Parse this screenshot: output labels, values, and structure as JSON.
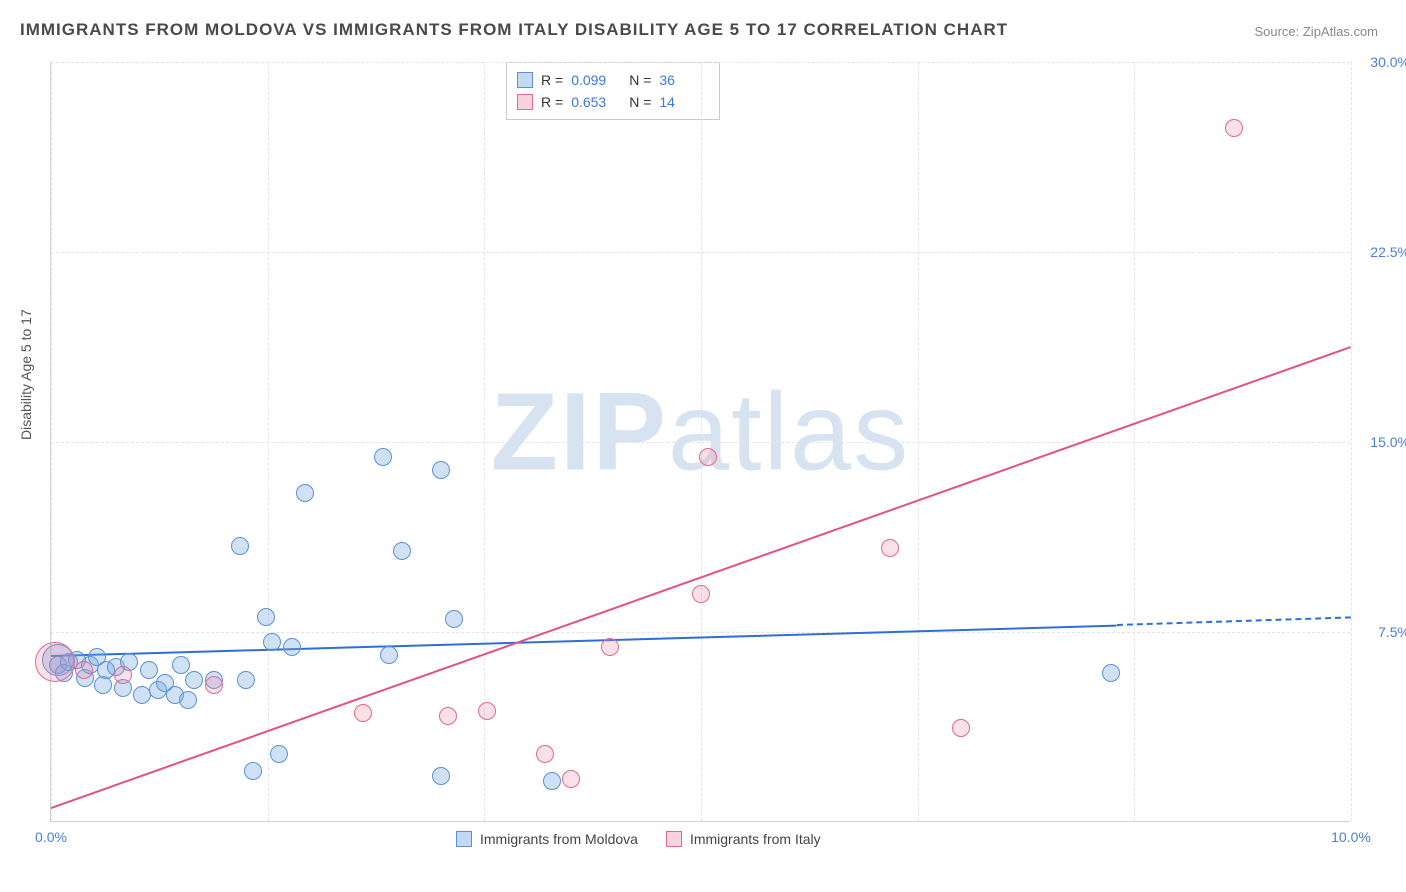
{
  "title": "IMMIGRANTS FROM MOLDOVA VS IMMIGRANTS FROM ITALY DISABILITY AGE 5 TO 17 CORRELATION CHART",
  "source": "Source: ZipAtlas.com",
  "ylabel": "Disability Age 5 to 17",
  "watermark_zip": "ZIP",
  "watermark_atlas": "atlas",
  "chart": {
    "type": "scatter",
    "xlim": [
      0,
      10
    ],
    "ylim": [
      0,
      30
    ],
    "xticks": [
      {
        "v": 0.0,
        "label": "0.0%"
      },
      {
        "v": 10.0,
        "label": "10.0%"
      }
    ],
    "xgrid_at": [
      0,
      1.667,
      3.333,
      5.0,
      6.667,
      8.333,
      10.0
    ],
    "yticks": [
      {
        "v": 7.5,
        "label": "7.5%"
      },
      {
        "v": 15.0,
        "label": "15.0%"
      },
      {
        "v": 22.5,
        "label": "22.5%"
      },
      {
        "v": 30.0,
        "label": "30.0%"
      }
    ],
    "grid_color": "#e4e4e4",
    "background_color": "#ffffff",
    "series": [
      {
        "key": "moldova",
        "label": "Immigrants from Moldova",
        "color_fill": "rgba(120,170,230,0.35)",
        "color_stroke": "#5b92d6",
        "class": "pt-blue",
        "R_label": "R =",
        "R": "0.099",
        "N_label": "N =",
        "N": "36",
        "trend": {
          "x1": 0.0,
          "y1": 6.6,
          "x2": 8.2,
          "y2": 7.8,
          "color": "#2d6fd6",
          "dash_x1": 8.2,
          "dash_y1": 7.8,
          "dash_x2": 10.0,
          "dash_y2": 8.1
        },
        "points": [
          {
            "x": 0.05,
            "y": 6.4,
            "r": 16
          },
          {
            "x": 0.05,
            "y": 6.2,
            "r": 9
          },
          {
            "x": 0.1,
            "y": 5.9,
            "r": 9
          },
          {
            "x": 0.14,
            "y": 6.3,
            "r": 9
          },
          {
            "x": 0.2,
            "y": 6.4,
            "r": 9
          },
          {
            "x": 0.26,
            "y": 5.7,
            "r": 9
          },
          {
            "x": 0.3,
            "y": 6.2,
            "r": 9
          },
          {
            "x": 0.35,
            "y": 6.5,
            "r": 9
          },
          {
            "x": 0.4,
            "y": 5.4,
            "r": 9
          },
          {
            "x": 0.42,
            "y": 6.0,
            "r": 9
          },
          {
            "x": 0.5,
            "y": 6.1,
            "r": 9
          },
          {
            "x": 0.55,
            "y": 5.3,
            "r": 9
          },
          {
            "x": 0.6,
            "y": 6.3,
            "r": 9
          },
          {
            "x": 0.7,
            "y": 5.0,
            "r": 9
          },
          {
            "x": 0.75,
            "y": 6.0,
            "r": 9
          },
          {
            "x": 0.82,
            "y": 5.2,
            "r": 9
          },
          {
            "x": 0.88,
            "y": 5.5,
            "r": 9
          },
          {
            "x": 0.95,
            "y": 5.0,
            "r": 9
          },
          {
            "x": 1.0,
            "y": 6.2,
            "r": 9
          },
          {
            "x": 1.05,
            "y": 4.8,
            "r": 9
          },
          {
            "x": 1.1,
            "y": 5.6,
            "r": 9
          },
          {
            "x": 1.25,
            "y": 5.6,
            "r": 9
          },
          {
            "x": 1.45,
            "y": 10.9,
            "r": 9
          },
          {
            "x": 1.5,
            "y": 5.6,
            "r": 9
          },
          {
            "x": 1.55,
            "y": 2.0,
            "r": 9
          },
          {
            "x": 1.65,
            "y": 8.1,
            "r": 9
          },
          {
            "x": 1.7,
            "y": 7.1,
            "r": 9
          },
          {
            "x": 1.75,
            "y": 2.7,
            "r": 9
          },
          {
            "x": 1.85,
            "y": 6.9,
            "r": 9
          },
          {
            "x": 1.95,
            "y": 13.0,
            "r": 9
          },
          {
            "x": 2.55,
            "y": 14.4,
            "r": 9
          },
          {
            "x": 2.6,
            "y": 6.6,
            "r": 9
          },
          {
            "x": 2.7,
            "y": 10.7,
            "r": 9
          },
          {
            "x": 3.0,
            "y": 13.9,
            "r": 9
          },
          {
            "x": 3.0,
            "y": 1.8,
            "r": 9
          },
          {
            "x": 3.1,
            "y": 8.0,
            "r": 9
          },
          {
            "x": 3.85,
            "y": 1.6,
            "r": 9
          },
          {
            "x": 8.15,
            "y": 5.9,
            "r": 9
          }
        ]
      },
      {
        "key": "italy",
        "label": "Immigrants from Italy",
        "color_fill": "rgba(235,130,160,0.25)",
        "color_stroke": "#e06a90",
        "class": "pt-pink",
        "R_label": "R =",
        "R": "0.653",
        "N_label": "N =",
        "N": "14",
        "trend": {
          "x1": 0.0,
          "y1": 0.6,
          "x2": 10.0,
          "y2": 18.8,
          "color": "#e25284"
        },
        "points": [
          {
            "x": 0.03,
            "y": 6.3,
            "r": 20
          },
          {
            "x": 0.25,
            "y": 6.0,
            "r": 9
          },
          {
            "x": 0.55,
            "y": 5.8,
            "r": 9
          },
          {
            "x": 1.25,
            "y": 5.4,
            "r": 9
          },
          {
            "x": 2.4,
            "y": 4.3,
            "r": 9
          },
          {
            "x": 3.05,
            "y": 4.2,
            "r": 9
          },
          {
            "x": 3.35,
            "y": 4.4,
            "r": 9
          },
          {
            "x": 3.8,
            "y": 2.7,
            "r": 9
          },
          {
            "x": 4.0,
            "y": 1.7,
            "r": 9
          },
          {
            "x": 4.3,
            "y": 6.9,
            "r": 9
          },
          {
            "x": 5.0,
            "y": 9.0,
            "r": 9
          },
          {
            "x": 5.05,
            "y": 14.4,
            "r": 9
          },
          {
            "x": 6.45,
            "y": 10.8,
            "r": 9
          },
          {
            "x": 7.0,
            "y": 3.7,
            "r": 9
          },
          {
            "x": 9.1,
            "y": 27.4,
            "r": 9
          }
        ]
      }
    ]
  }
}
